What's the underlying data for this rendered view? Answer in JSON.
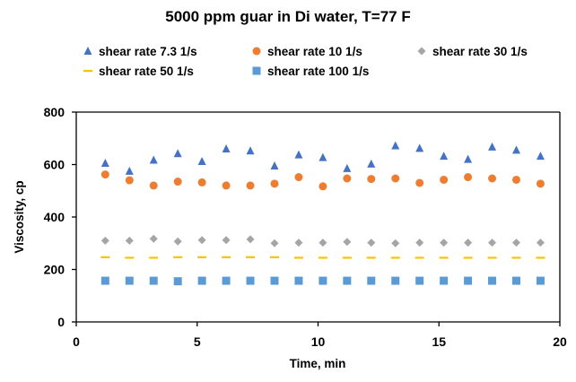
{
  "chart_data": {
    "type": "scatter",
    "title": "5000 ppm guar in Di water, T=77 F",
    "xlabel": "Time, min",
    "ylabel": "Viscosity, cp",
    "xlim": [
      0,
      20
    ],
    "ylim": [
      0,
      800
    ],
    "xticks": [
      "0",
      "5",
      "10",
      "15",
      "20"
    ],
    "yticks": [
      "0",
      "200",
      "400",
      "600",
      "800"
    ],
    "grid": false,
    "legend_position": "top",
    "x": [
      1.2,
      2.2,
      3.2,
      4.2,
      5.2,
      6.2,
      7.2,
      8.2,
      9.2,
      10.2,
      11.2,
      12.2,
      13.2,
      14.2,
      15.2,
      16.2,
      17.2,
      18.2,
      19.2
    ],
    "series": [
      {
        "name": "shear rate 7.3 1/s",
        "marker": "triangle",
        "color": "#4472C4",
        "values": [
          605,
          575,
          617,
          642,
          612,
          660,
          652,
          595,
          637,
          627,
          585,
          602,
          672,
          662,
          632,
          620,
          667,
          655,
          632
        ]
      },
      {
        "name": "shear rate 10 1/s",
        "marker": "circle",
        "color": "#ED7D31",
        "values": [
          562,
          540,
          520,
          535,
          532,
          520,
          520,
          527,
          552,
          517,
          547,
          545,
          547,
          530,
          542,
          552,
          547,
          542,
          527
        ]
      },
      {
        "name": "shear rate 30 1/s",
        "marker": "diamond",
        "color": "#A5A5A5",
        "values": [
          310,
          310,
          317,
          307,
          312,
          312,
          315,
          300,
          302,
          302,
          305,
          302,
          300,
          302,
          302,
          302,
          302,
          302,
          302
        ]
      },
      {
        "name": "shear rate 50 1/s",
        "marker": "dash",
        "color": "#FFC000",
        "values": [
          247,
          245,
          245,
          247,
          247,
          247,
          247,
          247,
          245,
          245,
          245,
          245,
          245,
          245,
          245,
          245,
          245,
          245,
          245
        ]
      },
      {
        "name": "shear rate 100 1/s",
        "marker": "square",
        "color": "#5B9BD5",
        "values": [
          157,
          157,
          157,
          155,
          157,
          157,
          157,
          157,
          157,
          157,
          157,
          157,
          157,
          157,
          157,
          157,
          157,
          157,
          157
        ]
      }
    ]
  }
}
